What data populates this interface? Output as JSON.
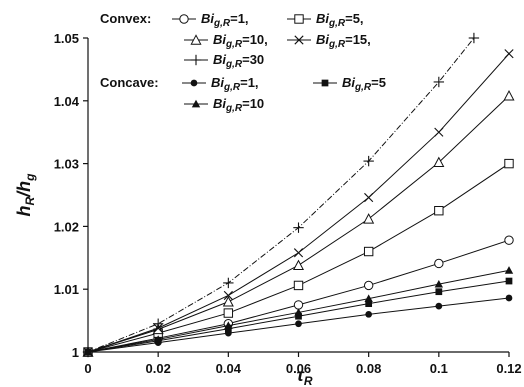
{
  "chart_data": {
    "type": "line",
    "xlabel": {
      "main": "τ",
      "sub": "R"
    },
    "ylabel": {
      "num": "h",
      "num_sub": "R",
      "den": "h",
      "den_sub": "g"
    },
    "xlim": [
      0,
      0.12
    ],
    "ylim": [
      1,
      1.05
    ],
    "x_ticks": [
      "0",
      "0.02",
      "0.04",
      "0.06",
      "0.08",
      "0.1",
      "0.12"
    ],
    "y_ticks": [
      "1",
      "1.01",
      "1.02",
      "1.03",
      "1.04",
      "1.05"
    ],
    "grid": false,
    "legend_position": "top-left",
    "legend_groups": [
      "Convex:",
      "Concave:"
    ],
    "series": [
      {
        "name": "Bi g,R=1",
        "group": "Convex",
        "marker": "circle-open",
        "dashed": false,
        "x": [
          0,
          0.02,
          0.04,
          0.06,
          0.08,
          0.1,
          0.12
        ],
        "y": [
          1,
          1.0022,
          1.0045,
          1.0075,
          1.0106,
          1.0141,
          1.0178
        ]
      },
      {
        "name": "Bi g,R=5",
        "group": "Convex",
        "marker": "square-open",
        "dashed": false,
        "x": [
          0,
          0.02,
          0.04,
          0.06,
          0.08,
          0.1,
          0.12
        ],
        "y": [
          1,
          1.003,
          1.0062,
          1.0106,
          1.016,
          1.0225,
          1.03
        ]
      },
      {
        "name": "Bi g,R=10",
        "group": "Convex",
        "marker": "triangle-open",
        "dashed": false,
        "x": [
          0,
          0.02,
          0.04,
          0.06,
          0.08,
          0.1,
          0.12
        ],
        "y": [
          1,
          1.0036,
          1.008,
          1.0138,
          1.0212,
          1.0302,
          1.0408
        ]
      },
      {
        "name": "Bi g,R=15",
        "group": "Convex",
        "marker": "x",
        "dashed": false,
        "x": [
          0,
          0.02,
          0.04,
          0.06,
          0.08,
          0.1,
          0.12
        ],
        "y": [
          1,
          1.0038,
          1.009,
          1.0158,
          1.0246,
          1.035,
          1.0475
        ]
      },
      {
        "name": "Bi g,R=30",
        "group": "Convex",
        "marker": "plus",
        "dashed": true,
        "x": [
          0,
          0.02,
          0.04,
          0.06,
          0.08,
          0.1,
          0.11
        ],
        "y": [
          1,
          1.0045,
          1.011,
          1.0198,
          1.0304,
          1.043,
          1.05
        ]
      },
      {
        "name": "Bi g,R=1",
        "group": "Concave",
        "marker": "circle-filled",
        "dashed": false,
        "x": [
          0,
          0.02,
          0.04,
          0.06,
          0.08,
          0.1,
          0.12
        ],
        "y": [
          1,
          1.0015,
          1.003,
          1.0045,
          1.006,
          1.0073,
          1.0086
        ]
      },
      {
        "name": "Bi g,R=5",
        "group": "Concave",
        "marker": "square-filled",
        "dashed": false,
        "x": [
          0,
          0.02,
          0.04,
          0.06,
          0.08,
          0.1,
          0.12
        ],
        "y": [
          1,
          1.0018,
          1.0037,
          1.0057,
          1.0077,
          1.0096,
          1.0113
        ]
      },
      {
        "name": "Bi g,R=10",
        "group": "Concave",
        "marker": "triangle-filled",
        "dashed": false,
        "x": [
          0,
          0.02,
          0.04,
          0.06,
          0.08,
          0.1,
          0.12
        ],
        "y": [
          1,
          1.002,
          1.0042,
          1.0063,
          1.0085,
          1.0108,
          1.013
        ]
      }
    ]
  }
}
